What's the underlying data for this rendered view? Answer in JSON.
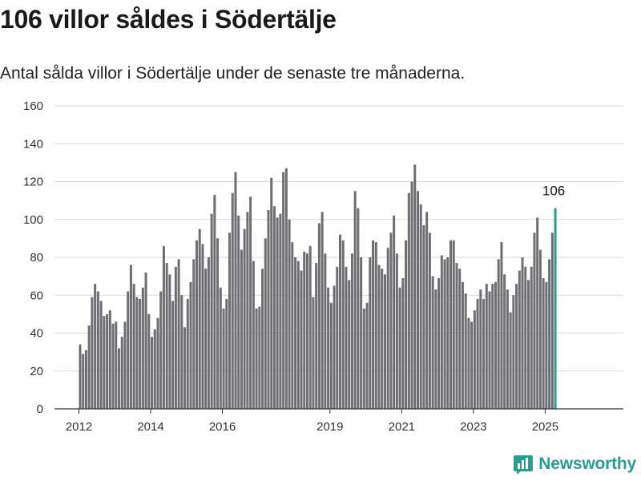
{
  "header": {
    "title": "106 villor såldes i Södertälje",
    "subtitle": "Antal sålda villor i Södertälje under de senaste tre månaderna."
  },
  "brand": {
    "name": "Newsworthy",
    "icon": "bar-chart-logo-icon",
    "color": "#2a9d8f"
  },
  "chart_data": {
    "type": "bar",
    "title": "106 villor såldes i Södertälje",
    "subtitle": "Antal sålda villor i Södertälje under de senaste tre månaderna.",
    "xlabel": "",
    "ylabel": "",
    "ylim": [
      0,
      160
    ],
    "yticks": [
      "0",
      "20",
      "40",
      "60",
      "80",
      "100",
      "120",
      "140",
      "160"
    ],
    "grid": true,
    "legend": "none",
    "bar_color": "#6e6e73",
    "highlight_color": "#2a9d8f",
    "x_start": "2012-01",
    "xticks": [
      {
        "label": "2012",
        "date": "2012-01"
      },
      {
        "label": "2014",
        "date": "2014-01"
      },
      {
        "label": "2016",
        "date": "2016-01"
      },
      {
        "label": "2019",
        "date": "2019-01"
      },
      {
        "label": "2021",
        "date": "2021-01"
      },
      {
        "label": "2023",
        "date": "2023-01"
      },
      {
        "label": "2025",
        "date": "2025-01"
      }
    ],
    "annotation": {
      "text": "106",
      "date": "2025-04",
      "value": 106
    },
    "values": [
      34,
      29,
      31,
      44,
      59,
      66,
      62,
      57,
      49,
      50,
      52,
      45,
      46,
      32,
      38,
      46,
      62,
      76,
      66,
      59,
      58,
      64,
      72,
      50,
      38,
      42,
      48,
      62,
      86,
      77,
      71,
      57,
      75,
      79,
      60,
      43,
      58,
      67,
      79,
      89,
      95,
      87,
      74,
      80,
      103,
      113,
      90,
      64,
      53,
      58,
      93,
      114,
      125,
      102,
      84,
      95,
      104,
      112,
      78,
      53,
      54,
      74,
      90,
      105,
      122,
      107,
      101,
      103,
      125,
      127,
      100,
      88,
      80,
      78,
      73,
      83,
      82,
      86,
      59,
      77,
      98,
      104,
      82,
      64,
      56,
      65,
      75,
      92,
      89,
      75,
      68,
      82,
      115,
      106,
      80,
      53,
      56,
      80,
      89,
      88,
      76,
      74,
      71,
      85,
      93,
      102,
      82,
      64,
      69,
      89,
      114,
      120,
      129,
      115,
      108,
      97,
      104,
      93,
      70,
      63,
      69,
      81,
      79,
      80,
      89,
      89,
      77,
      74,
      67,
      61,
      48,
      46,
      52,
      58,
      63,
      58,
      66,
      62,
      66,
      67,
      79,
      88,
      71,
      63,
      51,
      60,
      66,
      73,
      80,
      75,
      68,
      75,
      93,
      101,
      84,
      69,
      67,
      79,
      93,
      106
    ]
  }
}
